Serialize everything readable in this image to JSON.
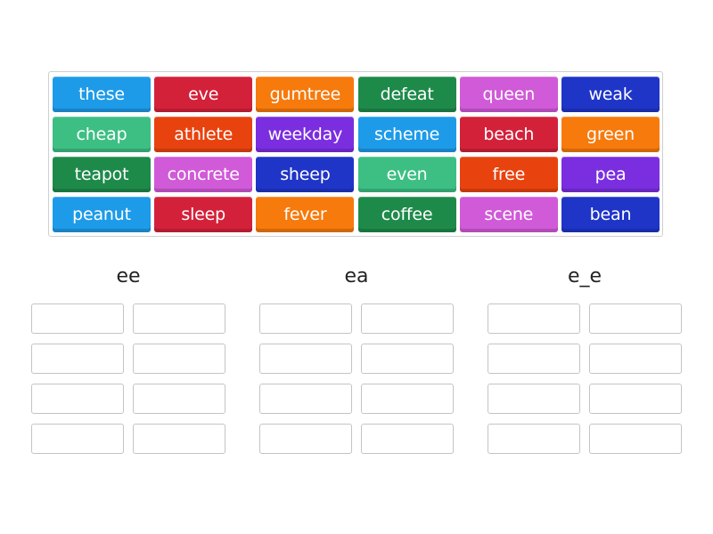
{
  "tiles": [
    {
      "text": "these",
      "color": "#1e9be8"
    },
    {
      "text": "eve",
      "color": "#d4213a"
    },
    {
      "text": "gumtree",
      "color": "#f77a0c"
    },
    {
      "text": "defeat",
      "color": "#1e8a4a"
    },
    {
      "text": "queen",
      "color": "#d05ad8"
    },
    {
      "text": "weak",
      "color": "#1f35c8"
    },
    {
      "text": "cheap",
      "color": "#3dbf84"
    },
    {
      "text": "athlete",
      "color": "#e8430f"
    },
    {
      "text": "weekday",
      "color": "#7b2ee0"
    },
    {
      "text": "scheme",
      "color": "#1e9be8"
    },
    {
      "text": "beach",
      "color": "#d4213a"
    },
    {
      "text": "green",
      "color": "#f77a0c"
    },
    {
      "text": "teapot",
      "color": "#1e8a4a"
    },
    {
      "text": "concrete",
      "color": "#d05ad8"
    },
    {
      "text": "sheep",
      "color": "#1f35c8"
    },
    {
      "text": "even",
      "color": "#3dbf84"
    },
    {
      "text": "free",
      "color": "#e8430f"
    },
    {
      "text": "pea",
      "color": "#7b2ee0"
    },
    {
      "text": "peanut",
      "color": "#1e9be8"
    },
    {
      "text": "sleep",
      "color": "#d4213a"
    },
    {
      "text": "fever",
      "color": "#f77a0c"
    },
    {
      "text": "coffee",
      "color": "#1e8a4a"
    },
    {
      "text": "scene",
      "color": "#d05ad8"
    },
    {
      "text": "bean",
      "color": "#1f35c8"
    }
  ],
  "groups": [
    {
      "heading": "ee",
      "slots": 8
    },
    {
      "heading": "ea",
      "slots": 8
    },
    {
      "heading": "e_e",
      "slots": 8
    }
  ]
}
